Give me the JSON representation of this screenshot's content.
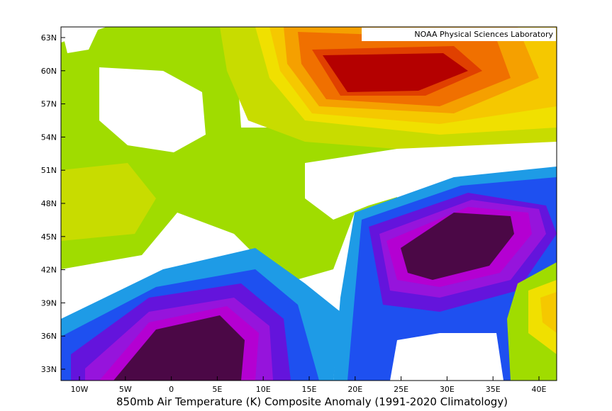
{
  "map": {
    "title": "850mb Air Temperature (K) Composite Anomaly (1991-2020 Climatology)",
    "credit": "NOAA Physical Sciences Laboratory",
    "x_tick_labels": [
      "10W",
      "5W",
      "0",
      "5E",
      "10E",
      "15E",
      "20E",
      "25E",
      "30E",
      "35E",
      "40E"
    ],
    "y_tick_labels": [
      "63N",
      "60N",
      "57N",
      "54N",
      "51N",
      "48N",
      "45N",
      "42N",
      "39N",
      "36N",
      "33N"
    ]
  }
}
